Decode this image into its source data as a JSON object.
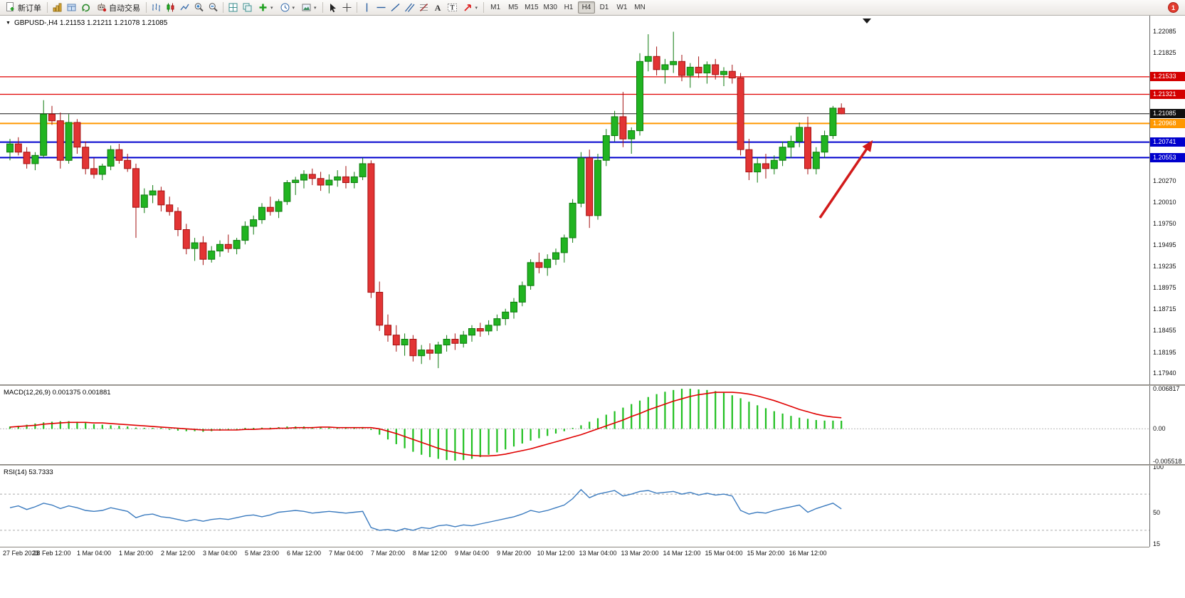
{
  "toolbar": {
    "new_order_label": "新订单",
    "auto_trading_label": "自动交易",
    "timeframes": [
      "M1",
      "M5",
      "M15",
      "M30",
      "H1",
      "H4",
      "D1",
      "W1",
      "MN"
    ],
    "active_timeframe": "H4",
    "notification_badge": "1"
  },
  "chart": {
    "title": "GBPUSD-,H4 1.21153 1.21211 1.21078 1.21085",
    "price_ticks": [
      "1.22085",
      "1.21825",
      "1.20270",
      "1.20010",
      "1.19750",
      "1.19495",
      "1.19235",
      "1.18975",
      "1.18715",
      "1.18455",
      "1.18195",
      "1.17940"
    ],
    "badges": [
      {
        "label": "1.21533",
        "color": "#d40000"
      },
      {
        "label": "1.21321",
        "color": "#d40000"
      },
      {
        "label": "1.21085",
        "color": "#101010"
      },
      {
        "label": "1.20968",
        "color": "#ff9800"
      },
      {
        "label": "1.20741",
        "color": "#0000cd"
      },
      {
        "label": "1.20553",
        "color": "#0000cd"
      }
    ],
    "hlines": [
      {
        "value": 1.21533,
        "color": "#e00000",
        "w": 1.2
      },
      {
        "value": 1.21321,
        "color": "#e00000",
        "w": 1.2
      },
      {
        "value": 1.21085,
        "color": "#141414",
        "w": 1
      },
      {
        "value": 1.20968,
        "color": "#ff9800",
        "w": 2
      },
      {
        "value": 1.20741,
        "color": "#0000cd",
        "w": 2
      },
      {
        "value": 1.20553,
        "color": "#0000cd",
        "w": 2
      }
    ],
    "up_color": "#21b421",
    "up_border": "#0e7a0e",
    "down_color": "#e23434",
    "down_border": "#a31111"
  },
  "macd": {
    "label": "MACD(12,26,9) 0.001375 0.001881",
    "scale": [
      "0.006817",
      "0.00",
      "-0.005518"
    ],
    "line_color": "#e00000",
    "hist_color": "#1fbf1f"
  },
  "rsi": {
    "label": "RSI(14) 53.7333",
    "scale": [
      "100",
      "50",
      "15"
    ],
    "line_color": "#3b7bbf"
  },
  "annotations": {
    "arrow_color": "#d21a1a"
  },
  "chart_data": {
    "type": "candlestick",
    "symbol": "GBPUSD",
    "period": "H4",
    "title": "GBPUSD-,H4",
    "y_range": [
      1.1794,
      1.22085
    ],
    "time_axis": [
      "27 Feb 2023",
      "28 Feb 12:00",
      "1 Mar 04:00",
      "1 Mar 20:00",
      "2 Mar 12:00",
      "3 Mar 04:00",
      "5 Mar 23:00",
      "6 Mar 12:00",
      "7 Mar 04:00",
      "7 Mar 20:00",
      "8 Mar 12:00",
      "9 Mar 04:00",
      "9 Mar 20:00",
      "10 Mar 12:00",
      "13 Mar 04:00",
      "13 Mar 20:00",
      "14 Mar 12:00",
      "15 Mar 04:00",
      "15 Mar 20:00",
      "16 Mar 12:00"
    ],
    "candles": [
      [
        1.2062,
        1.2078,
        1.2052,
        1.2072
      ],
      [
        1.2072,
        1.208,
        1.2058,
        1.2062
      ],
      [
        1.2062,
        1.2068,
        1.2042,
        1.2048
      ],
      [
        1.2048,
        1.2062,
        1.204,
        1.2058
      ],
      [
        1.2058,
        1.2125,
        1.2055,
        1.2108
      ],
      [
        1.2108,
        1.2118,
        1.2095,
        1.21
      ],
      [
        1.21,
        1.211,
        1.2042,
        1.2052
      ],
      [
        1.2052,
        1.2108,
        1.2048,
        1.2098
      ],
      [
        1.2098,
        1.2102,
        1.206,
        1.2068
      ],
      [
        1.2068,
        1.2075,
        1.2035,
        1.2042
      ],
      [
        1.2042,
        1.2055,
        1.203,
        1.2035
      ],
      [
        1.2035,
        1.2048,
        1.2028,
        1.2045
      ],
      [
        1.2045,
        1.207,
        1.204,
        1.2065
      ],
      [
        1.2065,
        1.2072,
        1.2048,
        1.2052
      ],
      [
        1.2052,
        1.206,
        1.2038,
        1.2042
      ],
      [
        1.2042,
        1.2048,
        1.1958,
        1.1995
      ],
      [
        1.1995,
        1.2018,
        1.1988,
        1.201
      ],
      [
        1.201,
        1.2022,
        1.2,
        1.2015
      ],
      [
        1.2015,
        1.202,
        1.199,
        1.1998
      ],
      [
        1.1998,
        1.2008,
        1.1985,
        1.199
      ],
      [
        1.199,
        1.1995,
        1.196,
        1.1968
      ],
      [
        1.1968,
        1.1975,
        1.1938,
        1.1945
      ],
      [
        1.1945,
        1.1958,
        1.193,
        1.1952
      ],
      [
        1.1952,
        1.196,
        1.1925,
        1.1932
      ],
      [
        1.1932,
        1.1948,
        1.1928,
        1.1942
      ],
      [
        1.1942,
        1.1955,
        1.1935,
        1.195
      ],
      [
        1.195,
        1.1962,
        1.194,
        1.1945
      ],
      [
        1.1945,
        1.1958,
        1.1938,
        1.1955
      ],
      [
        1.1955,
        1.1978,
        1.195,
        1.1972
      ],
      [
        1.1972,
        1.1985,
        1.1962,
        1.198
      ],
      [
        1.198,
        1.2,
        1.1975,
        1.1995
      ],
      [
        1.1995,
        1.2008,
        1.1985,
        1.199
      ],
      [
        1.199,
        1.2005,
        1.1982,
        1.2002
      ],
      [
        1.2002,
        1.2028,
        1.1998,
        1.2025
      ],
      [
        1.2025,
        1.2032,
        1.201,
        1.2028
      ],
      [
        1.2028,
        1.204,
        1.2018,
        1.2035
      ],
      [
        1.2035,
        1.2042,
        1.2022,
        1.203
      ],
      [
        1.203,
        1.2038,
        1.2015,
        1.2022
      ],
      [
        1.2022,
        1.2035,
        1.2012,
        1.2028
      ],
      [
        1.2028,
        1.204,
        1.202,
        1.2032
      ],
      [
        1.2032,
        1.2045,
        1.2018,
        1.2025
      ],
      [
        1.2025,
        1.2038,
        1.2018,
        1.2032
      ],
      [
        1.2032,
        1.2055,
        1.2028,
        1.2048
      ],
      [
        1.2048,
        1.2052,
        1.1885,
        1.1892
      ],
      [
        1.1892,
        1.1905,
        1.1845,
        1.1852
      ],
      [
        1.1852,
        1.1865,
        1.1832,
        1.184
      ],
      [
        1.184,
        1.1852,
        1.182,
        1.1828
      ],
      [
        1.1828,
        1.1842,
        1.1815,
        1.1835
      ],
      [
        1.1835,
        1.184,
        1.1808,
        1.1815
      ],
      [
        1.1815,
        1.1828,
        1.1805,
        1.1822
      ],
      [
        1.1822,
        1.183,
        1.181,
        1.1818
      ],
      [
        1.1818,
        1.1832,
        1.18,
        1.1828
      ],
      [
        1.1828,
        1.184,
        1.182,
        1.1835
      ],
      [
        1.1835,
        1.1842,
        1.1822,
        1.183
      ],
      [
        1.183,
        1.1845,
        1.1825,
        1.184
      ],
      [
        1.184,
        1.1852,
        1.1832,
        1.1848
      ],
      [
        1.1848,
        1.1855,
        1.1838,
        1.1845
      ],
      [
        1.1845,
        1.1858,
        1.184,
        1.1852
      ],
      [
        1.1852,
        1.1865,
        1.1845,
        1.186
      ],
      [
        1.186,
        1.1872,
        1.1852,
        1.1868
      ],
      [
        1.1868,
        1.1885,
        1.186,
        1.188
      ],
      [
        1.188,
        1.1905,
        1.1875,
        1.19
      ],
      [
        1.19,
        1.1932,
        1.1895,
        1.1928
      ],
      [
        1.1928,
        1.194,
        1.1915,
        1.1922
      ],
      [
        1.1922,
        1.1938,
        1.1912,
        1.1932
      ],
      [
        1.1932,
        1.1945,
        1.1925,
        1.194
      ],
      [
        1.194,
        1.1962,
        1.1928,
        1.1958
      ],
      [
        1.1958,
        1.2005,
        1.1952,
        1.2
      ],
      [
        1.2,
        1.2062,
        1.1995,
        1.2055
      ],
      [
        1.2055,
        1.2065,
        1.197,
        1.1985
      ],
      [
        1.1985,
        1.206,
        1.198,
        1.2052
      ],
      [
        1.2052,
        1.209,
        1.2045,
        1.2082
      ],
      [
        1.2082,
        1.2112,
        1.2075,
        1.2105
      ],
      [
        1.2105,
        1.2135,
        1.2068,
        1.2078
      ],
      [
        1.2078,
        1.2092,
        1.206,
        1.2088
      ],
      [
        1.2088,
        1.2182,
        1.2082,
        1.2172
      ],
      [
        1.2172,
        1.2205,
        1.216,
        1.2178
      ],
      [
        1.2178,
        1.219,
        1.2155,
        1.2162
      ],
      [
        1.2162,
        1.2175,
        1.2145,
        1.2168
      ],
      [
        1.2168,
        1.2208,
        1.2158,
        1.2172
      ],
      [
        1.2172,
        1.218,
        1.2148,
        1.2155
      ],
      [
        1.2155,
        1.217,
        1.214,
        1.2165
      ],
      [
        1.2165,
        1.2178,
        1.2152,
        1.2158
      ],
      [
        1.2158,
        1.2172,
        1.2145,
        1.2168
      ],
      [
        1.2168,
        1.2175,
        1.215,
        1.2156
      ],
      [
        1.2156,
        1.2165,
        1.2142,
        1.216
      ],
      [
        1.216,
        1.2168,
        1.2145,
        1.2152
      ],
      [
        1.2152,
        1.2158,
        1.2058,
        1.2065
      ],
      [
        1.2065,
        1.2078,
        1.2028,
        1.2038
      ],
      [
        1.2038,
        1.2055,
        1.2025,
        1.2048
      ],
      [
        1.2048,
        1.206,
        1.203,
        1.2042
      ],
      [
        1.2042,
        1.2058,
        1.2035,
        1.2052
      ],
      [
        1.2052,
        1.2075,
        1.2045,
        1.2068
      ],
      [
        1.2068,
        1.2082,
        1.2055,
        1.2075
      ],
      [
        1.2075,
        1.2098,
        1.2068,
        1.2092
      ],
      [
        1.2092,
        1.2105,
        1.2035,
        1.2042
      ],
      [
        1.2042,
        1.2068,
        1.2035,
        1.2062
      ],
      [
        1.2062,
        1.2088,
        1.2055,
        1.2082
      ],
      [
        1.2082,
        1.2118,
        1.2078,
        1.21153
      ],
      [
        1.21153,
        1.21211,
        1.21078,
        1.21085
      ]
    ],
    "macd": {
      "range": [
        -0.005518,
        0.006817
      ],
      "histogram": [
        0.0004,
        0.0005,
        0.0007,
        0.0009,
        0.0011,
        0.0012,
        0.0013,
        0.0013,
        0.0012,
        0.001,
        0.0008,
        0.0007,
        0.0006,
        0.0005,
        0.0004,
        0.0002,
        0.0001,
        0.0001,
        0.0,
        -0.0001,
        -0.0003,
        -0.0004,
        -0.0004,
        -0.0005,
        -0.0004,
        -0.0003,
        -0.0002,
        -0.0001,
        0.0,
        0.0001,
        0.0002,
        0.0002,
        0.0003,
        0.0004,
        0.0004,
        0.0004,
        0.0003,
        0.0003,
        0.0002,
        0.0002,
        0.0002,
        0.0002,
        0.0003,
        -0.0002,
        -0.001,
        -0.0018,
        -0.0026,
        -0.0033,
        -0.0039,
        -0.0044,
        -0.0048,
        -0.0051,
        -0.0053,
        -0.0054,
        -0.0053,
        -0.0051,
        -0.0048,
        -0.0044,
        -0.004,
        -0.0035,
        -0.003,
        -0.0025,
        -0.002,
        -0.0016,
        -0.0012,
        -0.0008,
        -0.0004,
        0.0,
        0.0006,
        0.0012,
        0.0018,
        0.0024,
        0.003,
        0.0036,
        0.0042,
        0.0048,
        0.0054,
        0.0059,
        0.0063,
        0.0066,
        0.0068,
        0.0068,
        0.0067,
        0.0066,
        0.0064,
        0.0061,
        0.0057,
        0.0052,
        0.0046,
        0.004,
        0.0035,
        0.003,
        0.0026,
        0.0022,
        0.0019,
        0.0017,
        0.0015,
        0.0014,
        0.0014,
        0.001375
      ],
      "signal": [
        0.0003,
        0.0004,
        0.0005,
        0.0006,
        0.0008,
        0.0009,
        0.001,
        0.0011,
        0.0011,
        0.0011,
        0.001,
        0.001,
        0.0009,
        0.0008,
        0.0007,
        0.0006,
        0.0005,
        0.0004,
        0.0003,
        0.0002,
        0.0001,
        0.0,
        -0.0001,
        -0.0002,
        -0.0002,
        -0.0002,
        -0.0002,
        -0.0002,
        -0.0001,
        -0.0001,
        0.0,
        0.0,
        0.0001,
        0.0001,
        0.0002,
        0.0002,
        0.0002,
        0.0003,
        0.0003,
        0.0002,
        0.0002,
        0.0002,
        0.0002,
        0.0002,
        0.0,
        -0.0004,
        -0.0008,
        -0.0013,
        -0.0018,
        -0.0023,
        -0.0028,
        -0.0033,
        -0.0037,
        -0.004,
        -0.0043,
        -0.0045,
        -0.0046,
        -0.0046,
        -0.0045,
        -0.0043,
        -0.004,
        -0.0037,
        -0.0034,
        -0.003,
        -0.0026,
        -0.0022,
        -0.0018,
        -0.0014,
        -0.001,
        -0.0005,
        0.0,
        0.0005,
        0.001,
        0.0015,
        0.0021,
        0.0026,
        0.0032,
        0.0037,
        0.0042,
        0.0047,
        0.0051,
        0.0055,
        0.0058,
        0.006,
        0.0062,
        0.0062,
        0.0062,
        0.0061,
        0.0059,
        0.0056,
        0.0052,
        0.0048,
        0.0043,
        0.0038,
        0.0033,
        0.0029,
        0.0025,
        0.0022,
        0.002,
        0.001881
      ]
    },
    "rsi": {
      "range": [
        15,
        100
      ],
      "levels": [
        30,
        70
      ],
      "values": [
        55,
        57,
        53,
        56,
        60,
        58,
        54,
        57,
        55,
        52,
        51,
        52,
        55,
        53,
        51,
        44,
        47,
        48,
        45,
        44,
        42,
        40,
        42,
        40,
        42,
        43,
        42,
        44,
        46,
        47,
        45,
        47,
        50,
        51,
        52,
        51,
        49,
        50,
        51,
        50,
        49,
        50,
        51,
        33,
        30,
        31,
        29,
        32,
        30,
        33,
        32,
        35,
        36,
        34,
        36,
        35,
        37,
        39,
        41,
        43,
        45,
        48,
        52,
        50,
        52,
        55,
        58,
        65,
        75,
        66,
        70,
        72,
        74,
        68,
        70,
        73,
        74,
        71,
        72,
        73,
        70,
        72,
        69,
        71,
        69,
        70,
        68,
        52,
        48,
        50,
        49,
        52,
        54,
        56,
        58,
        50,
        54,
        57,
        60,
        53.7333
      ]
    }
  }
}
